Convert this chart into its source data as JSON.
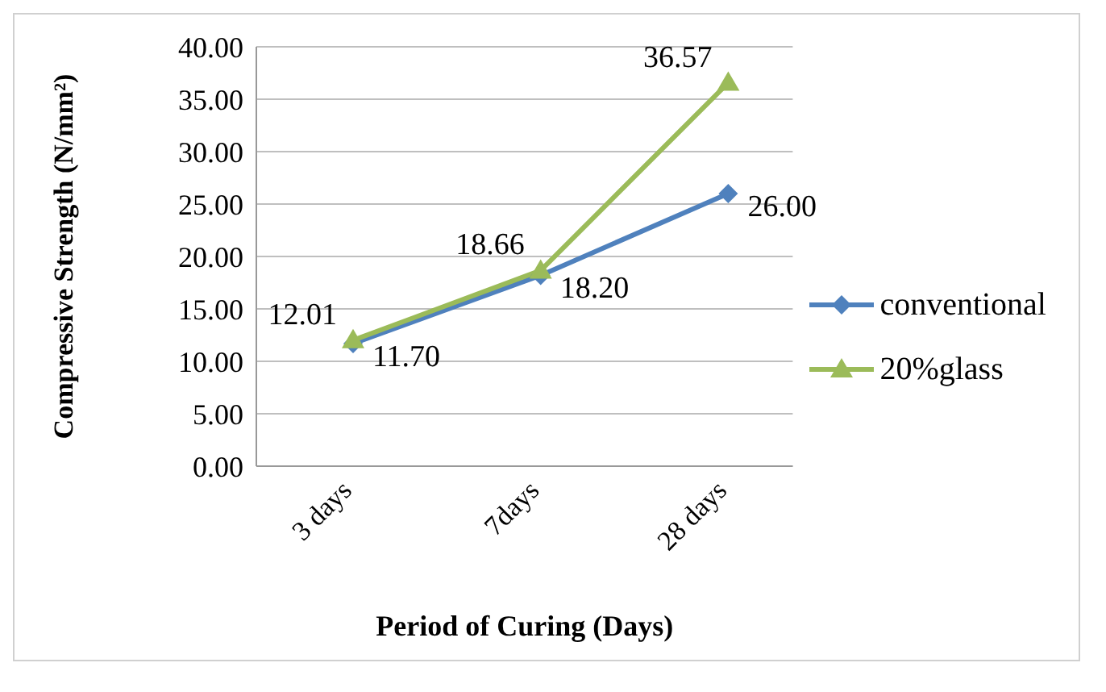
{
  "chart_data": {
    "type": "line",
    "xlabel": "Period of Curing (Days)",
    "ylabel": "Compressive Strength (N/mm²)",
    "categories": [
      "3 days",
      "7days",
      "28 days"
    ],
    "series": [
      {
        "name": "conventional",
        "color": "#4f81bd",
        "marker": "diamond",
        "values": [
          11.7,
          18.2,
          26.0
        ],
        "value_labels": [
          "11.70",
          "18.20",
          "26.00"
        ]
      },
      {
        "name": "20%glass",
        "color": "#9bbb59",
        "marker": "triangle",
        "values": [
          12.01,
          18.66,
          36.57
        ],
        "value_labels": [
          "12.01",
          "18.66",
          "36.57"
        ]
      }
    ],
    "ylim": [
      0,
      40
    ],
    "yticks": [
      {
        "value": 0,
        "label": "0.00"
      },
      {
        "value": 5,
        "label": "5.00"
      },
      {
        "value": 10,
        "label": "10.00"
      },
      {
        "value": 15,
        "label": "15.00"
      },
      {
        "value": 20,
        "label": "20.00"
      },
      {
        "value": 25,
        "label": "25.00"
      },
      {
        "value": 30,
        "label": "30.00"
      },
      {
        "value": 35,
        "label": "35.00"
      },
      {
        "value": 40,
        "label": "40.00"
      }
    ],
    "grid": "y",
    "legend": "right"
  }
}
